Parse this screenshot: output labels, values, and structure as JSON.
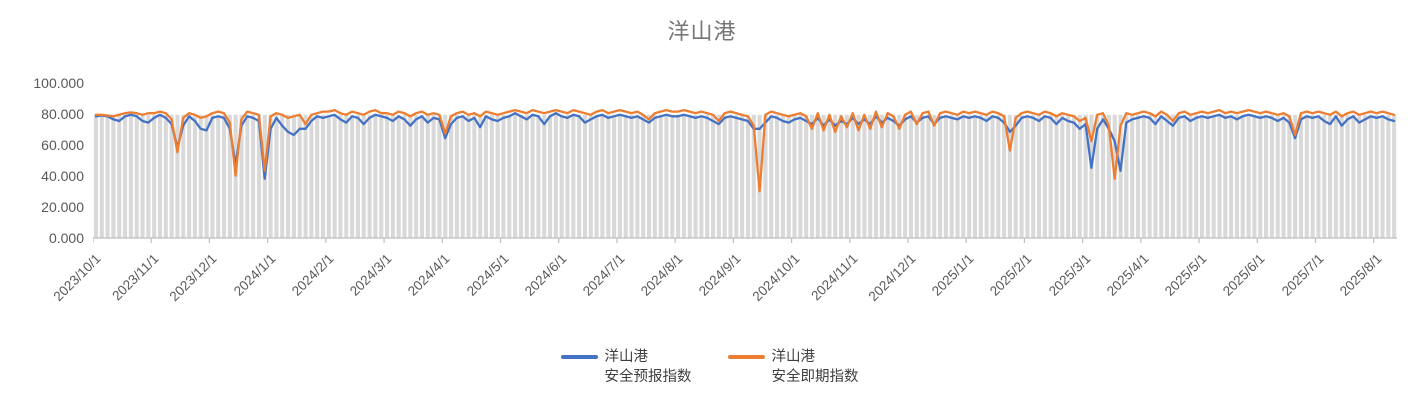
{
  "title": "洋山港",
  "legend": [
    {
      "label_line1": "洋山港",
      "label_line2": "安全预报指数",
      "color": "#4472C4"
    },
    {
      "label_line1": "洋山港",
      "label_line2": "安全即期指数",
      "color": "#ED7D31"
    }
  ],
  "colors": {
    "forecast_line": "#4472C4",
    "spot_line": "#ED7D31",
    "background_bar": "#D9D9D9",
    "axis_line": "#BFBFBF",
    "tick_text": "#595959",
    "title_text": "#767676"
  },
  "chart_data": {
    "type": "line",
    "title": "洋山港",
    "xlabel": "",
    "ylabel": "",
    "ylim": [
      0,
      100
    ],
    "grid": false,
    "legend_position": "bottom",
    "y_tick_labels": [
      "100.000",
      "80.000",
      "60.000",
      "40.000",
      "20.000",
      "0.000"
    ],
    "x_tick_labels": [
      "2023/10/1",
      "2023/11/1",
      "2023/12/1",
      "2024/1/1",
      "2024/2/1",
      "2024/3/1",
      "2024/4/1",
      "2024/5/1",
      "2024/6/1",
      "2024/7/1",
      "2024/8/1",
      "2024/9/1",
      "2024/10/1",
      "2024/11/1",
      "2024/12/1",
      "2025/1/1",
      "2025/2/1",
      "2025/3/1",
      "2025/4/1",
      "2025/5/1",
      "2025/6/1",
      "2025/7/1",
      "2025/8/1"
    ],
    "sample_interval_days": 3,
    "points_per_month": 10,
    "background_bars": {
      "color": "#D9D9D9",
      "approx_value": 79,
      "note": "daily gray columns behind lines, near-constant height"
    },
    "series": [
      {
        "name": "洋山港安全预报指数",
        "color": "#4472C4",
        "values": [
          78,
          78.5,
          78,
          76,
          75,
          78,
          79,
          78,
          75,
          74,
          77,
          79,
          77,
          73,
          58,
          72,
          78,
          75,
          70,
          69,
          77,
          78,
          77,
          70,
          47,
          72,
          78,
          77,
          75,
          38,
          70,
          77,
          72,
          68,
          66,
          70,
          70,
          75,
          78,
          77,
          78,
          79,
          76,
          74,
          78,
          77,
          73,
          77,
          79,
          78,
          77,
          75,
          78,
          76,
          72,
          76,
          78,
          74,
          77,
          76,
          64,
          73,
          77,
          78,
          75,
          77,
          71,
          78,
          76,
          75,
          77,
          78,
          80,
          78,
          76,
          79,
          78,
          73,
          78,
          80,
          78,
          77,
          79,
          78,
          74,
          76,
          78,
          79,
          77,
          78,
          79,
          78,
          77,
          78,
          76,
          74,
          77,
          78,
          79,
          78,
          78,
          79,
          78,
          77,
          78,
          77,
          75,
          73,
          77,
          78,
          77,
          76,
          75,
          70,
          70,
          74,
          78,
          77,
          75,
          74,
          76,
          77,
          75,
          73,
          77,
          72,
          76,
          72,
          75,
          73,
          77,
          73,
          76,
          73,
          78,
          74,
          77,
          75,
          72,
          76,
          78,
          74,
          77,
          78,
          73,
          77,
          78,
          77,
          76,
          78,
          77,
          78,
          77,
          75,
          78,
          77,
          74,
          68,
          72,
          77,
          78,
          77,
          75,
          78,
          77,
          73,
          77,
          75,
          74,
          70,
          73,
          45,
          70,
          76,
          70,
          62,
          43,
          74,
          76,
          77,
          78,
          77,
          73,
          78,
          75,
          72,
          77,
          78,
          75,
          77,
          78,
          77,
          78,
          79,
          77,
          78,
          76,
          78,
          79,
          78,
          77,
          78,
          77,
          75,
          77,
          74,
          64,
          76,
          78,
          77,
          78,
          75,
          73,
          78,
          72,
          76,
          78,
          74,
          76,
          78,
          77,
          78,
          76,
          75
        ]
      },
      {
        "name": "洋山港安全即期指数",
        "color": "#ED7D31",
        "values": [
          79,
          79,
          78.5,
          78,
          79,
          80,
          80.5,
          80,
          79,
          80,
          80,
          81,
          80,
          76,
          55,
          77,
          80,
          79,
          77,
          78,
          80,
          81,
          80,
          74,
          40,
          76,
          81,
          80,
          79,
          43,
          78,
          80,
          79,
          77,
          78,
          79,
          73,
          79,
          80,
          81,
          81,
          82,
          80,
          79,
          81,
          80,
          79,
          81,
          82,
          80,
          80,
          79,
          81,
          80,
          78,
          80,
          81,
          79,
          80,
          79,
          67,
          78,
          80,
          81,
          79,
          80,
          78,
          81,
          80,
          79,
          80,
          81,
          82,
          81,
          80,
          82,
          81,
          80,
          81,
          82,
          81,
          80,
          82,
          81,
          80,
          79,
          81,
          82,
          80,
          81,
          82,
          81,
          80,
          81,
          79,
          76,
          80,
          81,
          82,
          81,
          81,
          82,
          81,
          80,
          81,
          80,
          79,
          75,
          80,
          81,
          80,
          79,
          78,
          72,
          30,
          79,
          81,
          80,
          79,
          78,
          79,
          80,
          78,
          70,
          80,
          69,
          79,
          68,
          78,
          71,
          80,
          69,
          79,
          70,
          81,
          71,
          80,
          78,
          70,
          79,
          81,
          73,
          80,
          81,
          72,
          80,
          81,
          80,
          79,
          81,
          80,
          81,
          80,
          79,
          81,
          80,
          78,
          56,
          77,
          80,
          81,
          80,
          79,
          81,
          80,
          78,
          80,
          79,
          78,
          75,
          77,
          62,
          79,
          80,
          72,
          38,
          72,
          80,
          79,
          80,
          81,
          80,
          78,
          81,
          79,
          75,
          80,
          81,
          79,
          80,
          81,
          80,
          81,
          82,
          80,
          81,
          80,
          81,
          82,
          81,
          80,
          81,
          80,
          79,
          80,
          78,
          66,
          80,
          81,
          80,
          81,
          80,
          79,
          81,
          78,
          80,
          81,
          79,
          80,
          81,
          80,
          81,
          80,
          79
        ]
      }
    ]
  }
}
